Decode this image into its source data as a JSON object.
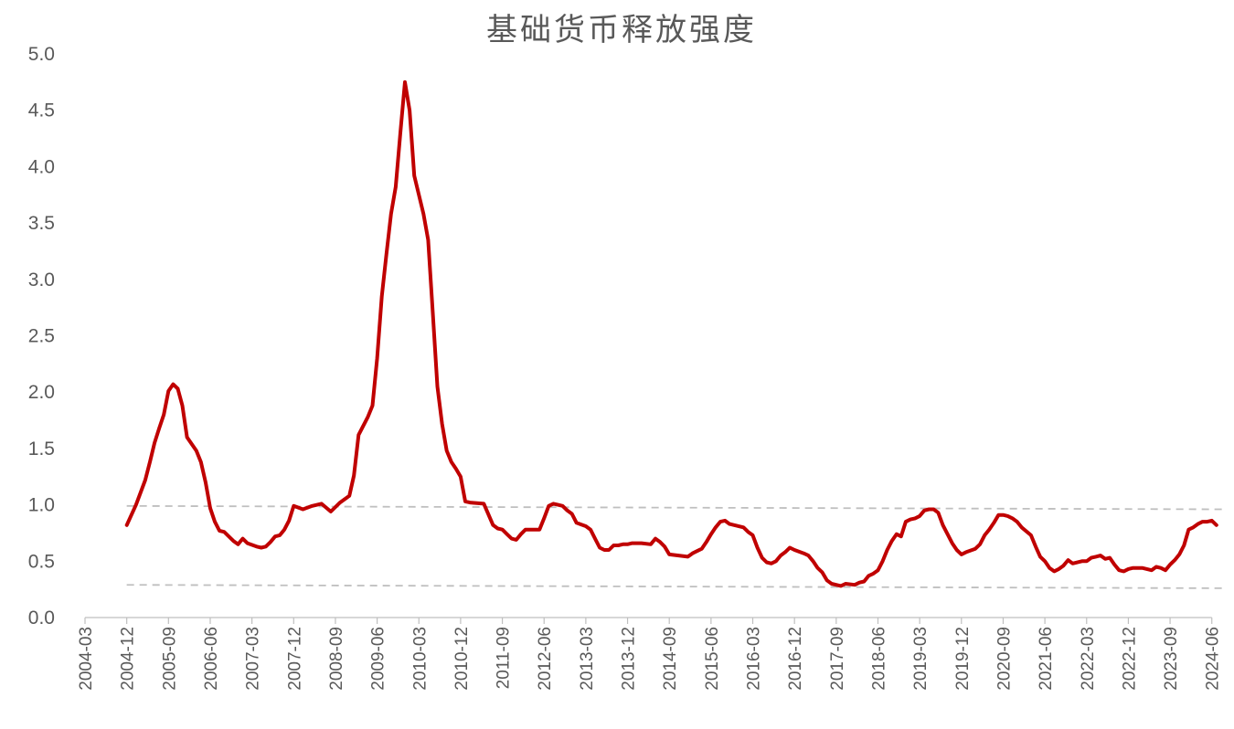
{
  "chart_data": {
    "type": "line",
    "title": "基础货币释放强度",
    "xlabel": "",
    "ylabel": "",
    "ylim": [
      0,
      5
    ],
    "yticks": [
      "0.0",
      "0.5",
      "1.0",
      "1.5",
      "2.0",
      "2.5",
      "3.0",
      "3.5",
      "4.0",
      "4.5",
      "5.0"
    ],
    "xticks": [
      "2004-03",
      "2004-12",
      "2005-09",
      "2006-06",
      "2007-03",
      "2007-12",
      "2008-09",
      "2009-06",
      "2010-03",
      "2010-12",
      "2011-09",
      "2012-06",
      "2013-03",
      "2013-12",
      "2014-09",
      "2015-06",
      "2016-03",
      "2016-12",
      "2017-09",
      "2018-06",
      "2019-03",
      "2019-12",
      "2020-09",
      "2021-06",
      "2022-03",
      "2022-12",
      "2023-09",
      "2024-06"
    ],
    "grid": false,
    "legend": "none",
    "series": [
      {
        "color": "#c00000",
        "points": [
          [
            "2004-12",
            0.82
          ],
          [
            "2005-02",
            1.0
          ],
          [
            "2005-04",
            1.22
          ],
          [
            "2005-05",
            1.38
          ],
          [
            "2005-06",
            1.55
          ],
          [
            "2005-07",
            1.68
          ],
          [
            "2005-08",
            1.8
          ],
          [
            "2005-09",
            2.01
          ],
          [
            "2005-10",
            2.07
          ],
          [
            "2005-11",
            2.03
          ],
          [
            "2005-12",
            1.88
          ],
          [
            "2006-01",
            1.6
          ],
          [
            "2006-03",
            1.48
          ],
          [
            "2006-04",
            1.38
          ],
          [
            "2006-05",
            1.2
          ],
          [
            "2006-06",
            0.97
          ],
          [
            "2006-07",
            0.85
          ],
          [
            "2006-08",
            0.77
          ],
          [
            "2006-09",
            0.76
          ],
          [
            "2006-11",
            0.68
          ],
          [
            "2006-12",
            0.65
          ],
          [
            "2007-01",
            0.7
          ],
          [
            "2007-02",
            0.66
          ],
          [
            "2007-04",
            0.63
          ],
          [
            "2007-05",
            0.62
          ],
          [
            "2007-06",
            0.63
          ],
          [
            "2007-07",
            0.67
          ],
          [
            "2007-08",
            0.72
          ],
          [
            "2007-09",
            0.73
          ],
          [
            "2007-10",
            0.78
          ],
          [
            "2007-11",
            0.86
          ],
          [
            "2007-12",
            0.99
          ],
          [
            "2008-02",
            0.96
          ],
          [
            "2008-04",
            0.99
          ],
          [
            "2008-06",
            1.01
          ],
          [
            "2008-08",
            0.94
          ],
          [
            "2008-10",
            1.02
          ],
          [
            "2008-12",
            1.08
          ],
          [
            "2009-01",
            1.26
          ],
          [
            "2009-02",
            1.62
          ],
          [
            "2009-04",
            1.78
          ],
          [
            "2009-05",
            1.88
          ],
          [
            "2009-06",
            2.3
          ],
          [
            "2009-07",
            2.85
          ],
          [
            "2009-08",
            3.22
          ],
          [
            "2009-09",
            3.58
          ],
          [
            "2009-10",
            3.82
          ],
          [
            "2009-11",
            4.3
          ],
          [
            "2009-12",
            4.75
          ],
          [
            "2010-01",
            4.5
          ],
          [
            "2010-02",
            3.92
          ],
          [
            "2010-04",
            3.58
          ],
          [
            "2010-05",
            3.35
          ],
          [
            "2010-06",
            2.7
          ],
          [
            "2010-07",
            2.05
          ],
          [
            "2010-08",
            1.72
          ],
          [
            "2010-09",
            1.48
          ],
          [
            "2010-10",
            1.38
          ],
          [
            "2010-11",
            1.32
          ],
          [
            "2010-12",
            1.25
          ],
          [
            "2011-01",
            1.03
          ],
          [
            "2011-02",
            1.02
          ],
          [
            "2011-05",
            1.01
          ],
          [
            "2011-07",
            0.82
          ],
          [
            "2011-08",
            0.79
          ],
          [
            "2011-09",
            0.78
          ],
          [
            "2011-10",
            0.74
          ],
          [
            "2011-11",
            0.7
          ],
          [
            "2011-12",
            0.69
          ],
          [
            "2012-01",
            0.74
          ],
          [
            "2012-02",
            0.78
          ],
          [
            "2012-04",
            0.78
          ],
          [
            "2012-05",
            0.78
          ],
          [
            "2012-06",
            0.88
          ],
          [
            "2012-07",
            0.99
          ],
          [
            "2012-08",
            1.01
          ],
          [
            "2012-09",
            1.0
          ],
          [
            "2012-10",
            0.99
          ],
          [
            "2012-11",
            0.95
          ],
          [
            "2012-12",
            0.92
          ],
          [
            "2013-01",
            0.84
          ],
          [
            "2013-03",
            0.81
          ],
          [
            "2013-04",
            0.78
          ],
          [
            "2013-05",
            0.7
          ],
          [
            "2013-06",
            0.62
          ],
          [
            "2013-07",
            0.6
          ],
          [
            "2013-08",
            0.6
          ],
          [
            "2013-09",
            0.64
          ],
          [
            "2013-10",
            0.64
          ],
          [
            "2013-11",
            0.65
          ],
          [
            "2013-12",
            0.65
          ],
          [
            "2014-01",
            0.66
          ],
          [
            "2014-03",
            0.66
          ],
          [
            "2014-05",
            0.65
          ],
          [
            "2014-06",
            0.7
          ],
          [
            "2014-07",
            0.67
          ],
          [
            "2014-08",
            0.63
          ],
          [
            "2014-09",
            0.56
          ],
          [
            "2014-11",
            0.55
          ],
          [
            "2015-01",
            0.54
          ],
          [
            "2015-02",
            0.57
          ],
          [
            "2015-04",
            0.61
          ],
          [
            "2015-05",
            0.67
          ],
          [
            "2015-06",
            0.74
          ],
          [
            "2015-07",
            0.8
          ],
          [
            "2015-08",
            0.85
          ],
          [
            "2015-09",
            0.86
          ],
          [
            "2015-10",
            0.83
          ],
          [
            "2015-11",
            0.82
          ],
          [
            "2016-01",
            0.8
          ],
          [
            "2016-02",
            0.76
          ],
          [
            "2016-03",
            0.73
          ],
          [
            "2016-04",
            0.62
          ],
          [
            "2016-05",
            0.53
          ],
          [
            "2016-06",
            0.49
          ],
          [
            "2016-07",
            0.48
          ],
          [
            "2016-08",
            0.5
          ],
          [
            "2016-09",
            0.55
          ],
          [
            "2016-10",
            0.58
          ],
          [
            "2016-11",
            0.62
          ],
          [
            "2016-12",
            0.6
          ],
          [
            "2017-02",
            0.57
          ],
          [
            "2017-03",
            0.55
          ],
          [
            "2017-04",
            0.5
          ],
          [
            "2017-05",
            0.44
          ],
          [
            "2017-06",
            0.4
          ],
          [
            "2017-07",
            0.33
          ],
          [
            "2017-08",
            0.3
          ],
          [
            "2017-09",
            0.29
          ],
          [
            "2017-10",
            0.28
          ],
          [
            "2017-11",
            0.3
          ],
          [
            "2018-01",
            0.29
          ],
          [
            "2018-02",
            0.31
          ],
          [
            "2018-03",
            0.32
          ],
          [
            "2018-04",
            0.37
          ],
          [
            "2018-05",
            0.39
          ],
          [
            "2018-06",
            0.42
          ],
          [
            "2018-07",
            0.5
          ],
          [
            "2018-08",
            0.6
          ],
          [
            "2018-09",
            0.68
          ],
          [
            "2018-10",
            0.74
          ],
          [
            "2018-11",
            0.72
          ],
          [
            "2018-12",
            0.85
          ],
          [
            "2019-01",
            0.87
          ],
          [
            "2019-02",
            0.88
          ],
          [
            "2019-03",
            0.9
          ],
          [
            "2019-04",
            0.95
          ],
          [
            "2019-05",
            0.96
          ],
          [
            "2019-06",
            0.96
          ],
          [
            "2019-07",
            0.93
          ],
          [
            "2019-08",
            0.82
          ],
          [
            "2019-09",
            0.74
          ],
          [
            "2019-10",
            0.66
          ],
          [
            "2019-11",
            0.6
          ],
          [
            "2019-12",
            0.56
          ],
          [
            "2020-01",
            0.58
          ],
          [
            "2020-03",
            0.61
          ],
          [
            "2020-04",
            0.65
          ],
          [
            "2020-05",
            0.73
          ],
          [
            "2020-06",
            0.78
          ],
          [
            "2020-07",
            0.84
          ],
          [
            "2020-08",
            0.91
          ],
          [
            "2020-09",
            0.91
          ],
          [
            "2020-10",
            0.9
          ],
          [
            "2020-11",
            0.88
          ],
          [
            "2020-12",
            0.85
          ],
          [
            "2021-01",
            0.8
          ],
          [
            "2021-03",
            0.73
          ],
          [
            "2021-04",
            0.63
          ],
          [
            "2021-05",
            0.54
          ],
          [
            "2021-06",
            0.5
          ],
          [
            "2021-07",
            0.44
          ],
          [
            "2021-08",
            0.41
          ],
          [
            "2021-09",
            0.43
          ],
          [
            "2021-10",
            0.46
          ],
          [
            "2021-11",
            0.51
          ],
          [
            "2021-12",
            0.48
          ],
          [
            "2022-02",
            0.5
          ],
          [
            "2022-03",
            0.5
          ],
          [
            "2022-04",
            0.53
          ],
          [
            "2022-05",
            0.54
          ],
          [
            "2022-06",
            0.55
          ],
          [
            "2022-07",
            0.52
          ],
          [
            "2022-08",
            0.53
          ],
          [
            "2022-09",
            0.47
          ],
          [
            "2022-10",
            0.42
          ],
          [
            "2022-11",
            0.41
          ],
          [
            "2022-12",
            0.43
          ],
          [
            "2023-01",
            0.44
          ],
          [
            "2023-03",
            0.44
          ],
          [
            "2023-04",
            0.43
          ],
          [
            "2023-05",
            0.42
          ],
          [
            "2023-06",
            0.45
          ],
          [
            "2023-07",
            0.44
          ],
          [
            "2023-08",
            0.42
          ],
          [
            "2023-09",
            0.47
          ],
          [
            "2023-10",
            0.51
          ],
          [
            "2023-11",
            0.56
          ],
          [
            "2023-12",
            0.64
          ],
          [
            "2024-01",
            0.78
          ],
          [
            "2024-02",
            0.8
          ],
          [
            "2024-03",
            0.83
          ],
          [
            "2024-04",
            0.85
          ],
          [
            "2024-05",
            0.85
          ],
          [
            "2024-06",
            0.86
          ],
          [
            "2024-07",
            0.82
          ]
        ]
      }
    ],
    "reference_lines": [
      {
        "style": "dashed",
        "color": "#bfbfbf",
        "from": [
          "2004-12",
          0.99
        ],
        "to": [
          "2024-09",
          0.96
        ]
      },
      {
        "style": "dashed",
        "color": "#bfbfbf",
        "from": [
          "2004-12",
          0.29
        ],
        "to": [
          "2024-09",
          0.26
        ]
      }
    ]
  }
}
